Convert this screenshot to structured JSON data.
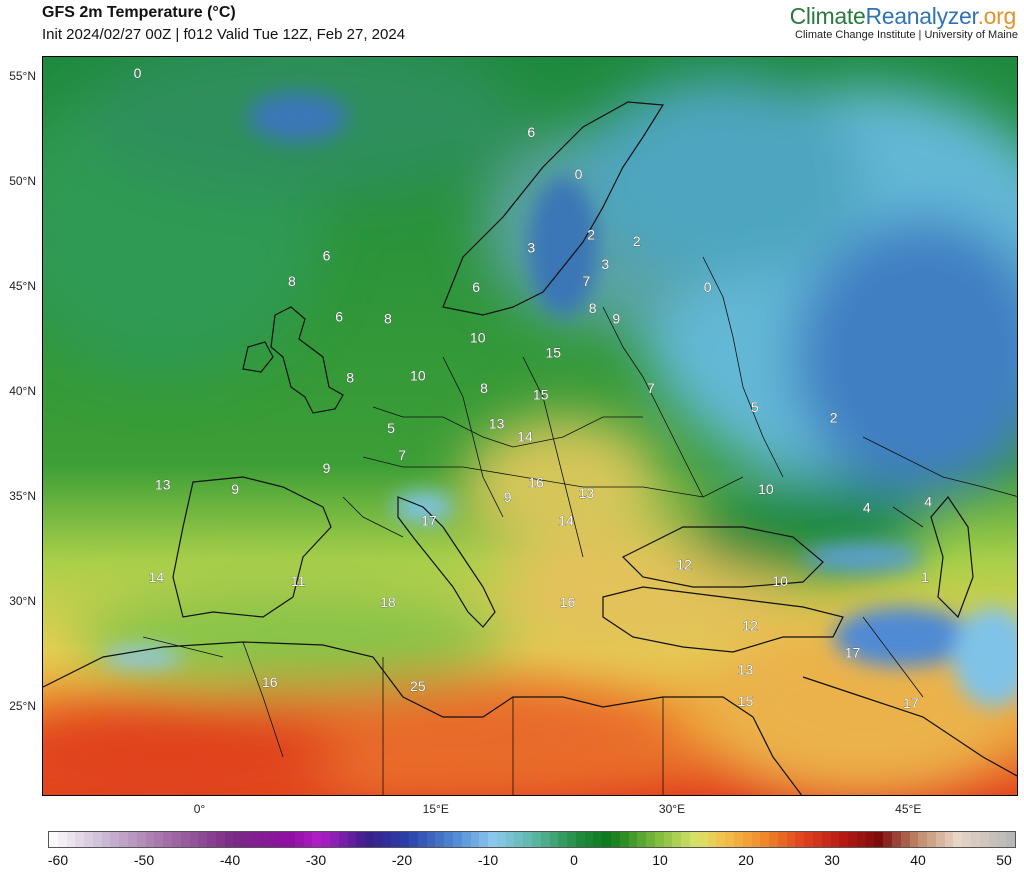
{
  "header": {
    "title": "GFS 2m Temperature (°C)",
    "subtitle": "Init 2024/02/27 00Z | f012 Valid Tue 12Z, Feb 27, 2024",
    "brand_part1": "Climate",
    "brand_part2": "Reanalyzer",
    "brand_part3": ".org",
    "brand_tagline": "Climate Change Institute | University of Maine",
    "brand_colors": {
      "climate": "#2a7a3e",
      "reanalyzer": "#2f74b5",
      "org": "#e2932b"
    }
  },
  "map": {
    "latitude_labels": [
      "55°N",
      "50°N",
      "45°N",
      "40°N",
      "35°N",
      "30°N",
      "25°N"
    ],
    "longitude_labels": [
      "0°",
      "15°E",
      "30°E",
      "45°E"
    ],
    "temperature_labels": [
      {
        "value": "0",
        "lon": -4.0,
        "lat": 55.0
      },
      {
        "value": "6",
        "lon": 21.0,
        "lat": 52.2
      },
      {
        "value": "0",
        "lon": 24.0,
        "lat": 50.2
      },
      {
        "value": "6",
        "lon": 8.0,
        "lat": 46.3
      },
      {
        "value": "8",
        "lon": 5.8,
        "lat": 45.1
      },
      {
        "value": "3",
        "lon": 21.0,
        "lat": 46.7
      },
      {
        "value": "2",
        "lon": 24.8,
        "lat": 47.3
      },
      {
        "value": "2",
        "lon": 27.7,
        "lat": 47.0
      },
      {
        "value": "3",
        "lon": 25.7,
        "lat": 45.9
      },
      {
        "value": "7",
        "lon": 24.5,
        "lat": 45.1
      },
      {
        "value": "6",
        "lon": 17.5,
        "lat": 44.8
      },
      {
        "value": "0",
        "lon": 32.2,
        "lat": 44.8
      },
      {
        "value": "8",
        "lon": 24.9,
        "lat": 43.8
      },
      {
        "value": "9",
        "lon": 26.4,
        "lat": 43.3
      },
      {
        "value": "6",
        "lon": 8.8,
        "lat": 43.4
      },
      {
        "value": "8",
        "lon": 11.9,
        "lat": 43.3
      },
      {
        "value": "10",
        "lon": 17.6,
        "lat": 42.4
      },
      {
        "value": "15",
        "lon": 22.4,
        "lat": 41.7
      },
      {
        "value": "8",
        "lon": 9.5,
        "lat": 40.5
      },
      {
        "value": "10",
        "lon": 13.8,
        "lat": 40.6
      },
      {
        "value": "8",
        "lon": 18.0,
        "lat": 40.0
      },
      {
        "value": "15",
        "lon": 21.6,
        "lat": 39.7
      },
      {
        "value": "7",
        "lon": 28.6,
        "lat": 40.0
      },
      {
        "value": "5",
        "lon": 35.2,
        "lat": 39.1
      },
      {
        "value": "2",
        "lon": 40.2,
        "lat": 38.6
      },
      {
        "value": "13",
        "lon": 18.8,
        "lat": 38.3
      },
      {
        "value": "14",
        "lon": 20.6,
        "lat": 37.7
      },
      {
        "value": "5",
        "lon": 12.1,
        "lat": 38.1
      },
      {
        "value": "7",
        "lon": 12.8,
        "lat": 36.8
      },
      {
        "value": "9",
        "lon": 8.0,
        "lat": 36.2
      },
      {
        "value": "13",
        "lon": -2.4,
        "lat": 35.4
      },
      {
        "value": "9",
        "lon": 2.2,
        "lat": 35.2
      },
      {
        "value": "16",
        "lon": 21.3,
        "lat": 35.5
      },
      {
        "value": "9",
        "lon": 19.5,
        "lat": 34.8
      },
      {
        "value": "13",
        "lon": 24.5,
        "lat": 35.0
      },
      {
        "value": "10",
        "lon": 35.9,
        "lat": 35.2
      },
      {
        "value": "4",
        "lon": 42.3,
        "lat": 34.3
      },
      {
        "value": "4",
        "lon": 46.2,
        "lat": 34.6
      },
      {
        "value": "17",
        "lon": 14.5,
        "lat": 33.7
      },
      {
        "value": "14",
        "lon": 23.2,
        "lat": 33.7
      },
      {
        "value": "12",
        "lon": 30.7,
        "lat": 31.6
      },
      {
        "value": "10",
        "lon": 36.8,
        "lat": 30.8
      },
      {
        "value": "1",
        "lon": 46.0,
        "lat": 31.0
      },
      {
        "value": "14",
        "lon": -2.8,
        "lat": 31.0
      },
      {
        "value": "11",
        "lon": 6.2,
        "lat": 30.8
      },
      {
        "value": "18",
        "lon": 11.9,
        "lat": 29.8
      },
      {
        "value": "16",
        "lon": 23.3,
        "lat": 29.8
      },
      {
        "value": "12",
        "lon": 34.9,
        "lat": 28.7
      },
      {
        "value": "17",
        "lon": 41.4,
        "lat": 27.4
      },
      {
        "value": "13",
        "lon": 34.6,
        "lat": 26.6
      },
      {
        "value": "16",
        "lon": 4.4,
        "lat": 26.0
      },
      {
        "value": "25",
        "lon": 13.8,
        "lat": 25.8
      },
      {
        "value": "15",
        "lon": 34.6,
        "lat": 25.1
      },
      {
        "value": "17",
        "lon": 45.1,
        "lat": 25.0
      }
    ]
  },
  "colorbar": {
    "ticks": [
      "-60",
      "-50",
      "-40",
      "-30",
      "-20",
      "-10",
      "0",
      "10",
      "20",
      "30",
      "40",
      "50"
    ],
    "stops": [
      [
        "#ffffff",
        0
      ],
      [
        "#c9b6d2",
        0.06
      ],
      [
        "#a571a8",
        0.12
      ],
      [
        "#7a2a86",
        0.19
      ],
      [
        "#8e0fa2",
        0.25
      ],
      [
        "#b11fc7",
        0.28
      ],
      [
        "#3a1e8a",
        0.33
      ],
      [
        "#2a3fa8",
        0.37
      ],
      [
        "#4f8ad4",
        0.42
      ],
      [
        "#8cc7ef",
        0.46
      ],
      [
        "#5fb8a8",
        0.5
      ],
      [
        "#1f8a3c",
        0.55
      ],
      [
        "#0c7a1c",
        0.58
      ],
      [
        "#7ebd3c",
        0.63
      ],
      [
        "#d9e26a",
        0.67
      ],
      [
        "#f2c04a",
        0.7
      ],
      [
        "#ee8a2a",
        0.74
      ],
      [
        "#e0431e",
        0.78
      ],
      [
        "#b81b14",
        0.82
      ],
      [
        "#7d0c0c",
        0.86
      ],
      [
        "#c08a6a",
        0.9
      ],
      [
        "#e8d6c6",
        0.94
      ],
      [
        "#b4b4b4",
        1.0
      ]
    ]
  }
}
